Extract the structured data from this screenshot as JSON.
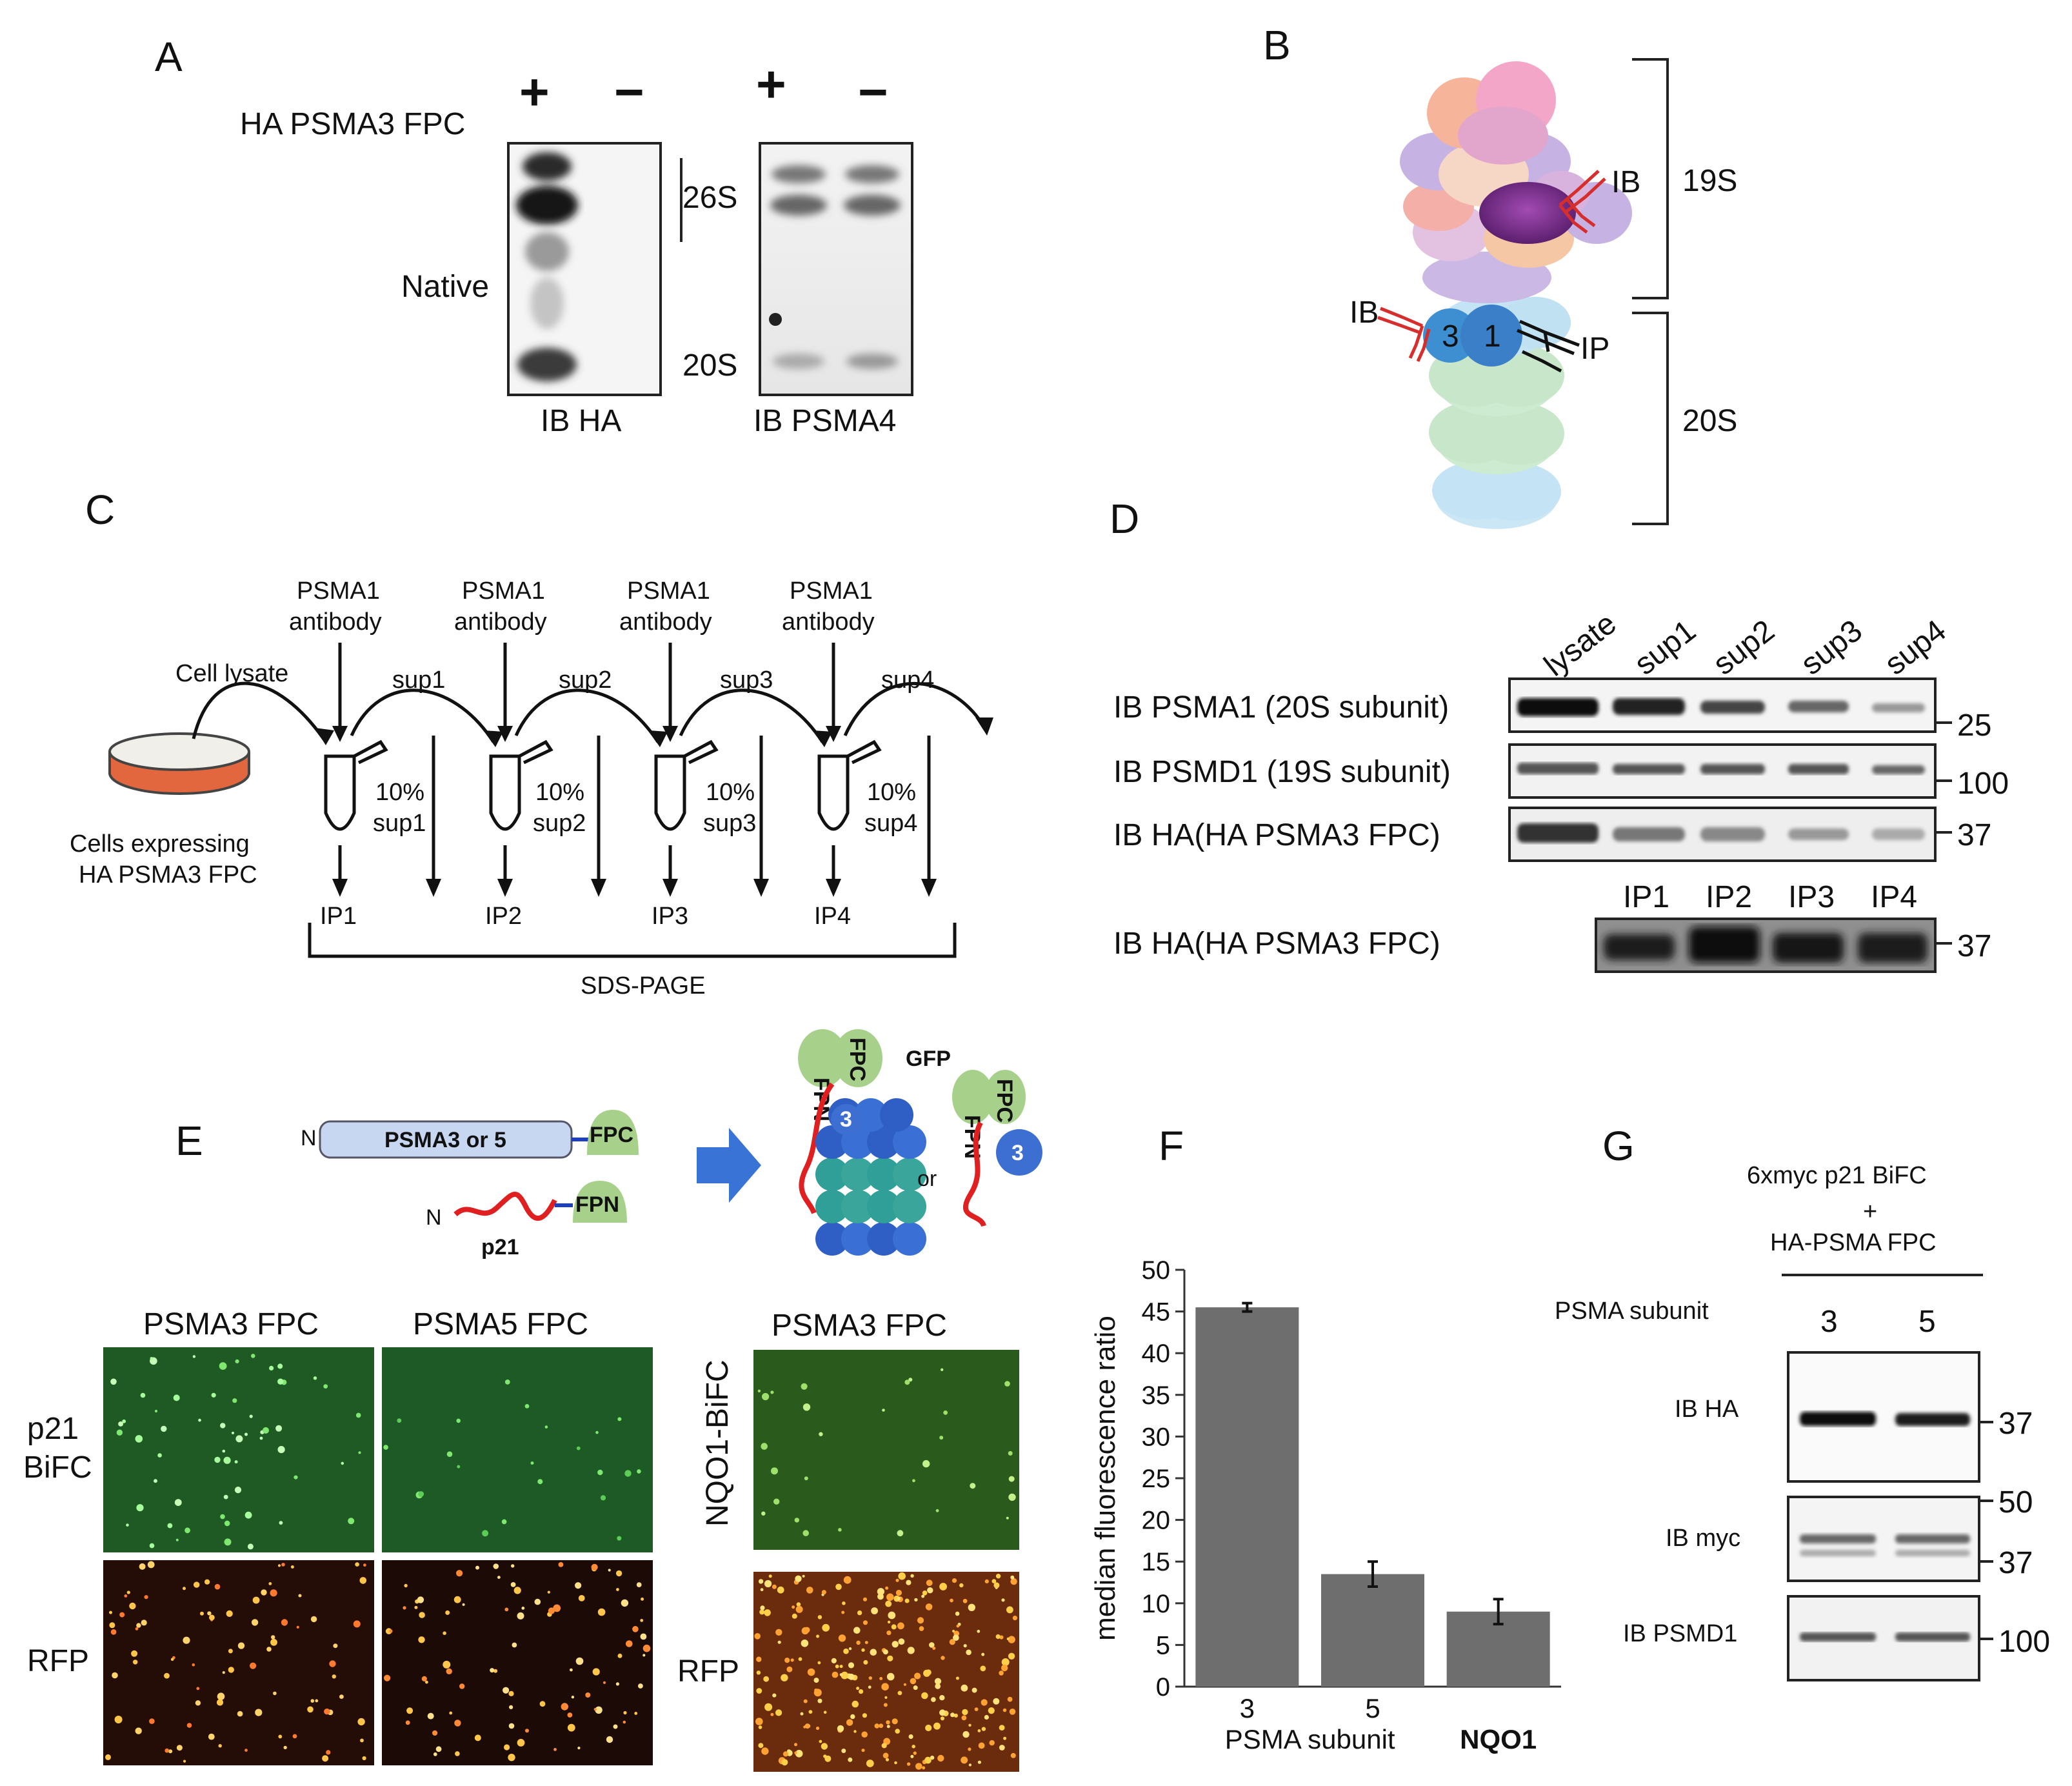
{
  "panels": {
    "A": {
      "letter": "A",
      "construct": "HA PSMA3 FPC",
      "plus": "+",
      "minus": "−",
      "native": "Native",
      "s26": "26S",
      "s20": "20S",
      "blot1": "IB HA",
      "blot2": "IB PSMA4"
    },
    "B": {
      "letter": "B",
      "ib_top": "IB",
      "label_19s": "19S",
      "ib_left": "IB",
      "ip": "IP",
      "label_20s": "20S",
      "sub3": "3",
      "sub1": "1"
    },
    "C": {
      "letter": "C",
      "antibody_line1": "PSMA1",
      "antibody_line2": "antibody",
      "cell_lysate": "Cell lysate",
      "sups": [
        "sup1",
        "sup2",
        "sup3",
        "sup4"
      ],
      "pct": "10%",
      "ips": [
        "IP1",
        "IP2",
        "IP3",
        "IP4"
      ],
      "cells_line1": "Cells expressing",
      "cells_line2": "HA PSMA3 FPC",
      "sds": "SDS-PAGE"
    },
    "D": {
      "letter": "D",
      "lanes": [
        "lysate",
        "sup1",
        "sup2",
        "sup3",
        "sup4"
      ],
      "rows": [
        "IB PSMA1 (20S subunit)",
        "IB PSMD1 (19S subunit)",
        "IB HA(HA PSMA3 FPC)"
      ],
      "markers": [
        "25",
        "100",
        "37"
      ],
      "ip_lanes": [
        "IP1",
        "IP2",
        "IP3",
        "IP4"
      ],
      "ip_row": "IB HA(HA PSMA3 FPC)",
      "ip_marker": "37"
    },
    "E": {
      "letter": "E",
      "n1": "N",
      "construct": "PSMA3 or 5",
      "fpc": "FPC",
      "n2": "N",
      "fpn": "FPN",
      "p21": "p21",
      "gfp": "GFP",
      "or": "or",
      "sub3": "3",
      "col1": "PSMA3 FPC",
      "col2": "PSMA5 FPC",
      "col3": "PSMA3 FPC",
      "row1_line1": "p21",
      "row1_line2": "BiFC",
      "row2": "RFP",
      "nqo1": "NQO1-BiFC",
      "rfp2": "RFP"
    },
    "F": {
      "letter": "F"
    },
    "G": {
      "letter": "G",
      "header1": "6xmyc p21 BiFC",
      "plus": "+",
      "header2": "HA-PSMA FPC",
      "subunit_label": "PSMA subunit",
      "lanes": [
        "3",
        "5"
      ],
      "rows": [
        "IB HA",
        "IB myc",
        "IB PSMD1"
      ],
      "markers_ha": [
        "37"
      ],
      "markers_myc": [
        "50",
        "37"
      ],
      "markers_psmd1": [
        "100"
      ]
    }
  },
  "colors": {
    "bar": "#6e6e6e",
    "proteasome_19s": [
      "#f4a6c9",
      "#f6b49a",
      "#c9b3dd",
      "#b7a6dc",
      "#f5c7a4",
      "#e8c4d8"
    ],
    "core_20s_green": "#c8e6c9",
    "core_20s_blue": "#bfe1f2",
    "subunit_blue": "#3d8fd1",
    "purple": "#7b2d8b",
    "antibody_red": "#d62d2d",
    "dish": "#e2673e",
    "fluor_green_bg": "#1f5a24",
    "fluor_orange_bg": "#2a0f06",
    "fpc_green": "#9fd07f",
    "proteasome_teal": "#3aa59b",
    "proteasome_blue": "#3d6ed1"
  },
  "chart_data": {
    "type": "bar",
    "categories": [
      "3",
      "5",
      "NQO1"
    ],
    "values": [
      45.5,
      13.5,
      9
    ],
    "errors": [
      0.5,
      1.5,
      1.5
    ],
    "xlabel": "PSMA subunit",
    "ylabel": "median fluorescence ratio",
    "ylim": [
      0,
      50
    ],
    "yticks": [
      "0",
      "5",
      "10",
      "15",
      "20",
      "25",
      "30",
      "35",
      "40",
      "45",
      "50"
    ],
    "grid": false,
    "legend": "none"
  }
}
